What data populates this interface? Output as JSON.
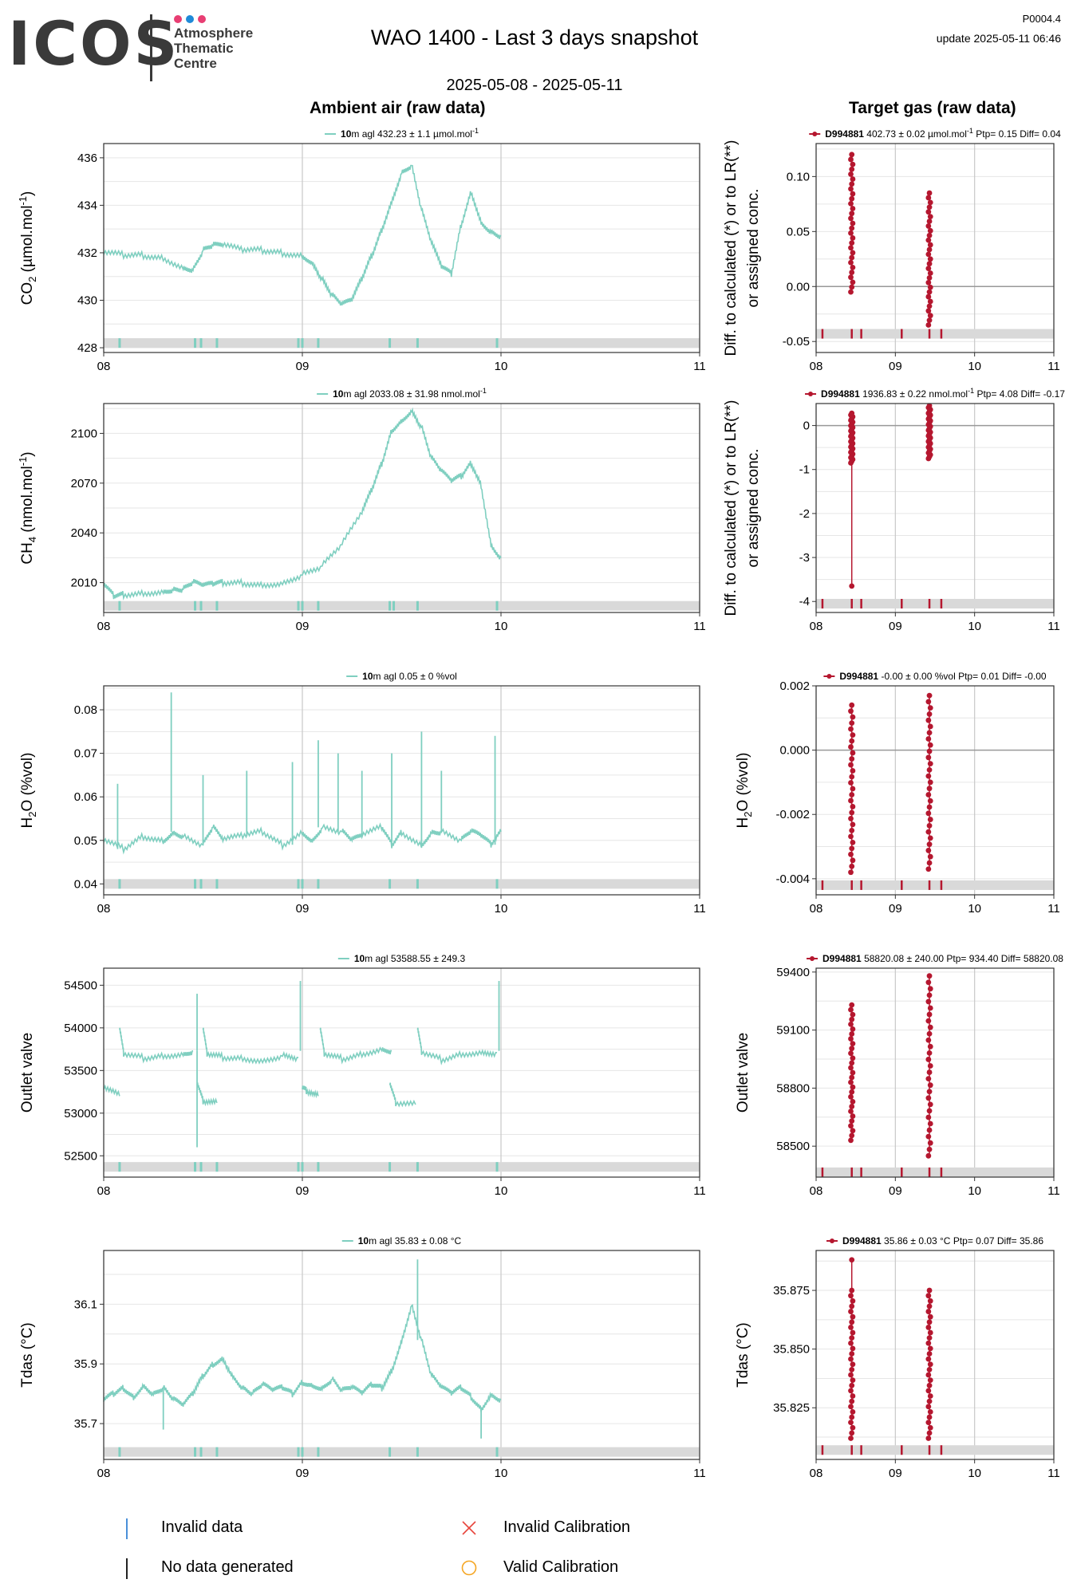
{
  "header": {
    "logo_letters": "ICOS",
    "logo_sub": [
      "Atmosphere",
      "Thematic",
      "Centre"
    ],
    "logo_dot_colors": [
      "#e83e73",
      "#1f8ad8",
      "#e83e73"
    ],
    "title": "WAO 1400 - Last 3 days snapshot",
    "date_range": "2025-05-08 - 2025-05-11",
    "code": "P0004.4",
    "update": "update  2025-05-11 06:46"
  },
  "columns": {
    "ambient_title": "Ambient air (raw data)",
    "target_title": "Target gas (raw data)"
  },
  "colors": {
    "ambient": "#7fcfc0",
    "target": "#b5172f",
    "band": "#d9d9d9",
    "grid": "#e6e6e6",
    "major_grid": "#c8c8c8"
  },
  "legend": {
    "items": [
      {
        "label": "Invalid data",
        "icon": "blue-tick",
        "color": "#4a90d9"
      },
      {
        "label": "Invalid Calibration",
        "icon": "red-cross",
        "color": "#e8453c"
      },
      {
        "label": "No data generated",
        "icon": "black-tick",
        "color": "#222222"
      },
      {
        "label": "Valid Calibration",
        "icon": "orange-circle",
        "color": "#f5a623"
      }
    ]
  },
  "chart_data": [
    {
      "id": "co2-ambient",
      "type": "line",
      "column": "ambient",
      "ylabel": "CO",
      "ylabel_sub": "2",
      "ylabel_rest": " (µmol.mol",
      "ylabel_sup": "-1",
      "ylabel_end": ")",
      "legend_bold": "10",
      "legend_text": "m agl 432.23 ± 1.1 µmol.mol",
      "legend_sup": "-1",
      "ylim": [
        427.8,
        436.6
      ],
      "yticks": [
        428,
        430,
        432,
        434,
        436
      ],
      "ytick_labels": [
        "428",
        "430",
        "432",
        "434",
        "436"
      ],
      "xticks": [
        8,
        9,
        10,
        11
      ],
      "xtick_labels": [
        "08",
        "09",
        "10",
        "11"
      ],
      "xlim": [
        8,
        11
      ],
      "series": [
        {
          "x": [
            8.0,
            8.1,
            8.2,
            8.3,
            8.4,
            8.45,
            8.5,
            8.55,
            8.6,
            8.7,
            8.8,
            8.9,
            9.0,
            9.05,
            9.1,
            9.15,
            9.2,
            9.25,
            9.3,
            9.35,
            9.4,
            9.45,
            9.5,
            9.55,
            9.6,
            9.65,
            9.7,
            9.75,
            9.8,
            9.85,
            9.9,
            9.95,
            10.0
          ],
          "y": [
            432.0,
            431.9,
            431.9,
            431.8,
            431.4,
            431.3,
            432.1,
            432.3,
            432.3,
            432.1,
            432.1,
            432.0,
            431.9,
            431.6,
            430.9,
            430.2,
            429.8,
            430.0,
            430.9,
            431.9,
            433.0,
            434.2,
            435.4,
            435.7,
            433.8,
            432.4,
            431.4,
            431.1,
            433.2,
            434.6,
            433.3,
            432.9,
            432.7
          ]
        }
      ],
      "band_y": 428.2,
      "band_ticks": [
        8.08,
        8.46,
        8.49,
        8.57,
        8.98,
        9.0,
        9.08,
        9.44,
        9.58,
        9.98
      ]
    },
    {
      "id": "co2-target",
      "type": "scatter",
      "column": "target",
      "ylabel": "Diff. to calculated (*) or to LR(**)",
      "ylabel2": "or assigned conc.",
      "legend_bold": "D994881",
      "legend_text": " 402.73 ± 0.02 µmol.mol",
      "legend_sup": "-1",
      "legend_after": "  Ptp= 0.15  Diff= 0.04",
      "ylim": [
        -0.06,
        0.13
      ],
      "yticks": [
        -0.05,
        0.0,
        0.05,
        0.1
      ],
      "ytick_labels": [
        "-0.05",
        "0.00",
        "0.05",
        "0.10"
      ],
      "zero_line": 0.0,
      "xticks": [
        8,
        9,
        10,
        11
      ],
      "xtick_labels": [
        "08",
        "09",
        "10",
        "11"
      ],
      "xlim": [
        8,
        11
      ],
      "clusters": [
        {
          "x": 8.45,
          "min": -0.005,
          "max": 0.12
        },
        {
          "x": 9.43,
          "min": -0.035,
          "max": 0.085
        }
      ],
      "band_y": -0.043,
      "band_ticks": [
        8.08,
        8.45,
        8.57,
        9.08,
        9.43,
        9.58
      ]
    },
    {
      "id": "ch4-ambient",
      "type": "line",
      "column": "ambient",
      "ylabel": "CH",
      "ylabel_sub": "4",
      "ylabel_rest": " (nmol.mol",
      "ylabel_sup": "-1",
      "ylabel_end": ")",
      "legend_bold": "10",
      "legend_text": "m agl 2033.08 ± 31.98 nmol.mol",
      "legend_sup": "-1",
      "ylim": [
        1992,
        2118
      ],
      "yticks": [
        2010,
        2040,
        2070,
        2100
      ],
      "ytick_labels": [
        "2010",
        "2040",
        "2070",
        "2100"
      ],
      "xticks": [
        8,
        9,
        10,
        11
      ],
      "xtick_labels": [
        "08",
        "09",
        "10",
        "11"
      ],
      "xlim": [
        8,
        11
      ],
      "series": [
        {
          "x": [
            8.0,
            8.05,
            8.1,
            8.2,
            8.3,
            8.35,
            8.4,
            8.45,
            8.5,
            8.55,
            8.6,
            8.7,
            8.8,
            8.9,
            9.0,
            9.1,
            9.2,
            9.3,
            9.35,
            9.4,
            9.45,
            9.5,
            9.55,
            9.6,
            9.65,
            9.7,
            9.75,
            9.8,
            9.85,
            9.9,
            9.95,
            10.0
          ],
          "y": [
            2009,
            2002,
            2003,
            2004,
            2005,
            2006,
            2006,
            2010,
            2008,
            2009,
            2010,
            2010,
            2009,
            2010,
            2015,
            2020,
            2033,
            2052,
            2066,
            2082,
            2102,
            2108,
            2114,
            2104,
            2085,
            2077,
            2071,
            2074,
            2082,
            2069,
            2033,
            2025
          ]
        }
      ],
      "band_y": 1996,
      "band_ticks": [
        8.08,
        8.46,
        8.49,
        8.57,
        8.98,
        9.0,
        9.08,
        9.44,
        9.46,
        9.58,
        9.98
      ]
    },
    {
      "id": "ch4-target",
      "type": "scatter",
      "column": "target",
      "ylabel": "Diff. to calculated (*) or to LR(**)",
      "ylabel2": "or assigned conc.",
      "legend_bold": "D994881",
      "legend_text": " 1936.83 ± 0.22 nmol.mol",
      "legend_sup": "-1",
      "legend_after": "  Ptp= 4.08  Diff= -0.17",
      "ylim": [
        -4.25,
        0.5
      ],
      "yticks": [
        -4,
        -3,
        -2,
        -1,
        0
      ],
      "ytick_labels": [
        "-4",
        "-3",
        "-2",
        "-1",
        "0"
      ],
      "zero_line": 0.0,
      "xticks": [
        8,
        9,
        10,
        11
      ],
      "xtick_labels": [
        "08",
        "09",
        "10",
        "11"
      ],
      "xlim": [
        8,
        11
      ],
      "clusters": [
        {
          "x": 8.45,
          "min": -0.85,
          "max": 0.28,
          "outlier": -3.65
        },
        {
          "x": 9.43,
          "min": -0.75,
          "max": 0.45
        }
      ],
      "band_y": -4.05,
      "band_ticks": [
        8.08,
        8.45,
        8.57,
        9.08,
        9.43,
        9.58
      ]
    },
    {
      "id": "h2o-ambient",
      "type": "line",
      "column": "ambient",
      "ylabel": "H",
      "ylabel_sub": "2",
      "ylabel_rest": "O (%vol)",
      "ylabel_sup": "",
      "ylabel_end": "",
      "legend_bold": "10",
      "legend_text": "m agl 0.05 ± 0 %vol",
      "legend_sup": "",
      "ylim": [
        0.0375,
        0.0855
      ],
      "yticks": [
        0.04,
        0.05,
        0.06,
        0.07,
        0.08
      ],
      "ytick_labels": [
        "0.04",
        "0.05",
        "0.06",
        "0.07",
        "0.08"
      ],
      "xticks": [
        8,
        9,
        10,
        11
      ],
      "xtick_labels": [
        "08",
        "09",
        "10",
        "11"
      ],
      "xlim": [
        8,
        11
      ],
      "series": [
        {
          "x": [
            8.0,
            8.1,
            8.2,
            8.3,
            8.35,
            8.4,
            8.5,
            8.55,
            8.6,
            8.7,
            8.8,
            8.9,
            9.0,
            9.05,
            9.1,
            9.2,
            9.25,
            9.3,
            9.4,
            9.45,
            9.5,
            9.6,
            9.65,
            9.7,
            9.8,
            9.85,
            9.9,
            9.95,
            10.0
          ],
          "y": [
            0.05,
            0.048,
            0.051,
            0.05,
            0.052,
            0.051,
            0.049,
            0.053,
            0.05,
            0.051,
            0.052,
            0.049,
            0.052,
            0.05,
            0.053,
            0.052,
            0.05,
            0.051,
            0.053,
            0.049,
            0.052,
            0.049,
            0.052,
            0.052,
            0.05,
            0.052,
            0.051,
            0.049,
            0.052
          ]
        }
      ],
      "spikes": [
        [
          8.07,
          0.063
        ],
        [
          8.34,
          0.084
        ],
        [
          8.5,
          0.065
        ],
        [
          8.72,
          0.066
        ],
        [
          8.95,
          0.068
        ],
        [
          9.08,
          0.073
        ],
        [
          9.18,
          0.07
        ],
        [
          9.3,
          0.066
        ],
        [
          9.45,
          0.07
        ],
        [
          9.6,
          0.075
        ],
        [
          9.7,
          0.066
        ],
        [
          9.97,
          0.074
        ]
      ],
      "band_y": 0.04,
      "band_ticks": [
        8.08,
        8.46,
        8.49,
        8.57,
        8.98,
        9.0,
        9.08,
        9.44,
        9.58,
        9.98
      ]
    },
    {
      "id": "h2o-target",
      "type": "scatter",
      "column": "target",
      "ylabel": "H",
      "ylabel_sub": "2",
      "ylabel_rest": "O (%vol)",
      "legend_bold": "D994881",
      "legend_text": " -0.00 ± 0.00 %vol",
      "legend_sup": "",
      "legend_after": "  Ptp= 0.01  Diff= -0.00",
      "ylim": [
        -0.0045,
        0.002
      ],
      "yticks": [
        -0.004,
        -0.002,
        0.0,
        0.002
      ],
      "ytick_labels": [
        "-0.004",
        "-0.002",
        "0.000",
        "0.002"
      ],
      "zero_line": 0.0,
      "xticks": [
        8,
        9,
        10,
        11
      ],
      "xtick_labels": [
        "08",
        "09",
        "10",
        "11"
      ],
      "xlim": [
        8,
        11
      ],
      "clusters": [
        {
          "x": 8.45,
          "min": -0.0038,
          "max": 0.0014
        },
        {
          "x": 9.43,
          "min": -0.0037,
          "max": 0.0017
        }
      ],
      "band_y": -0.0042,
      "band_ticks": [
        8.08,
        8.45,
        8.57,
        9.08,
        9.43,
        9.58
      ]
    },
    {
      "id": "outlet-ambient",
      "type": "line",
      "column": "ambient",
      "ylabel": "Outlet valve",
      "ylabel_sub": "",
      "ylabel_rest": "",
      "ylabel_sup": "",
      "ylabel_end": "",
      "legend_bold": "10",
      "legend_text": "m agl 53588.55 ± 249.3",
      "legend_sup": "",
      "ylim": [
        52250,
        54700
      ],
      "yticks": [
        52500,
        53000,
        53500,
        54000,
        54500
      ],
      "ytick_labels": [
        "52500",
        "53000",
        "53500",
        "54000",
        "54500"
      ],
      "xticks": [
        8,
        9,
        10,
        11
      ],
      "xtick_labels": [
        "08",
        "09",
        "10",
        "11"
      ],
      "xlim": [
        8,
        11
      ],
      "series": [
        {
          "x": [
            8.08,
            8.1,
            8.2,
            8.3,
            8.4,
            8.45
          ],
          "y": [
            54000,
            53700,
            53650,
            53680,
            53700,
            53730
          ]
        },
        {
          "x": [
            8.5,
            8.52,
            8.6,
            8.7,
            8.8,
            8.9,
            8.98
          ],
          "y": [
            54000,
            53700,
            53660,
            53650,
            53620,
            53680,
            53650
          ]
        },
        {
          "x": [
            9.09,
            9.11,
            9.2,
            9.3,
            9.4,
            9.45
          ],
          "y": [
            54000,
            53700,
            53640,
            53700,
            53760,
            53730
          ]
        },
        {
          "x": [
            9.58,
            9.6,
            9.7,
            9.8,
            9.9,
            9.98
          ],
          "y": [
            54000,
            53720,
            53630,
            53700,
            53720,
            53710
          ]
        },
        {
          "x": [
            8.0,
            8.08
          ],
          "y": [
            53300,
            53200
          ]
        },
        {
          "x": [
            8.47,
            8.5,
            8.57
          ],
          "y": [
            53350,
            53140,
            53120
          ]
        },
        {
          "x": [
            9.0,
            9.02,
            9.08
          ],
          "y": [
            53300,
            53260,
            53200
          ]
        },
        {
          "x": [
            9.44,
            9.47,
            9.57
          ],
          "y": [
            53350,
            53120,
            53100
          ]
        }
      ],
      "spikes": [
        [
          8.47,
          54400
        ],
        [
          8.99,
          54550
        ],
        [
          9.99,
          54550
        ],
        [
          8.47,
          52600
        ]
      ],
      "band_y": 52370,
      "band_ticks": [
        8.08,
        8.46,
        8.49,
        8.57,
        8.98,
        9.0,
        9.08,
        9.44,
        9.58,
        9.98
      ]
    },
    {
      "id": "outlet-target",
      "type": "scatter",
      "column": "target",
      "ylabel": "Outlet valve",
      "legend_bold": "D994881",
      "legend_text": " 58820.08 ± 240.00",
      "legend_sup": "",
      "legend_after": "  Ptp= 934.40  Diff= 58820.08",
      "ylim": [
        58340,
        59420
      ],
      "yticks": [
        58500,
        58800,
        59100,
        59400
      ],
      "ytick_labels": [
        "58500",
        "58800",
        "59100",
        "59400"
      ],
      "zero_line": null,
      "xticks": [
        8,
        9,
        10,
        11
      ],
      "xtick_labels": [
        "08",
        "09",
        "10",
        "11"
      ],
      "xlim": [
        8,
        11
      ],
      "clusters": [
        {
          "x": 8.45,
          "min": 58530,
          "max": 59230
        },
        {
          "x": 9.43,
          "min": 58450,
          "max": 59380
        }
      ],
      "band_y": 58365,
      "band_ticks": [
        8.08,
        8.45,
        8.57,
        9.08,
        9.43,
        9.58
      ]
    },
    {
      "id": "tdas-ambient",
      "type": "line",
      "column": "ambient",
      "ylabel": "Tdas (°C)",
      "ylabel_sub": "",
      "ylabel_rest": "",
      "ylabel_sup": "",
      "ylabel_end": "",
      "legend_bold": "10",
      "legend_text": "m agl 35.83 ± 0.08 °C",
      "legend_sup": "",
      "ylim": [
        35.58,
        36.28
      ],
      "yticks": [
        35.7,
        35.9,
        36.1
      ],
      "ytick_labels": [
        "35.7",
        "35.9",
        "36.1"
      ],
      "xticks": [
        8,
        9,
        10,
        11
      ],
      "xtick_labels": [
        "08",
        "09",
        "10",
        "11"
      ],
      "xlim": [
        8,
        11
      ],
      "series": [
        {
          "x": [
            8.0,
            8.05,
            8.1,
            8.15,
            8.2,
            8.25,
            8.3,
            8.35,
            8.4,
            8.45,
            8.5,
            8.55,
            8.6,
            8.65,
            8.7,
            8.75,
            8.8,
            8.85,
            8.9,
            8.95,
            9.0,
            9.05,
            9.1,
            9.15,
            9.2,
            9.25,
            9.3,
            9.35,
            9.4,
            9.45,
            9.5,
            9.55,
            9.6,
            9.65,
            9.7,
            9.75,
            9.8,
            9.85,
            9.9,
            9.95,
            10.0
          ],
          "y": [
            35.78,
            35.8,
            35.82,
            35.79,
            35.83,
            35.8,
            35.82,
            35.78,
            35.76,
            35.8,
            35.86,
            35.9,
            35.92,
            35.86,
            35.82,
            35.8,
            35.83,
            35.81,
            35.82,
            35.8,
            35.84,
            35.83,
            35.82,
            35.85,
            35.81,
            35.82,
            35.8,
            35.83,
            35.82,
            35.88,
            35.98,
            36.1,
            35.98,
            35.86,
            35.82,
            35.8,
            35.82,
            35.79,
            35.75,
            35.8,
            35.78
          ]
        }
      ],
      "spikes": [
        [
          9.58,
          36.25
        ],
        [
          9.9,
          35.65
        ],
        [
          8.3,
          35.68
        ]
      ],
      "band_y": 35.605,
      "band_ticks": [
        8.08,
        8.46,
        8.49,
        8.57,
        8.98,
        9.0,
        9.08,
        9.44,
        9.58,
        9.98
      ]
    },
    {
      "id": "tdas-target",
      "type": "scatter",
      "column": "target",
      "ylabel": "Tdas (°C)",
      "legend_bold": "D994881",
      "legend_text": " 35.86 ± 0.03 °C",
      "legend_sup": "",
      "legend_after": "  Ptp= 0.07  Diff= 35.86",
      "ylim": [
        35.803,
        35.892
      ],
      "yticks": [
        35.825,
        35.85,
        35.875
      ],
      "ytick_labels": [
        "35.825",
        "35.850",
        "35.875"
      ],
      "zero_line": null,
      "xticks": [
        8,
        9,
        10,
        11
      ],
      "xtick_labels": [
        "08",
        "09",
        "10",
        "11"
      ],
      "xlim": [
        8,
        11
      ],
      "clusters": [
        {
          "x": 8.45,
          "min": 35.812,
          "max": 35.875,
          "outlier": 35.888
        },
        {
          "x": 9.43,
          "min": 35.812,
          "max": 35.875
        }
      ],
      "band_y": 35.807,
      "band_ticks": [
        8.08,
        8.45,
        8.57,
        9.08,
        9.43,
        9.58
      ]
    }
  ]
}
